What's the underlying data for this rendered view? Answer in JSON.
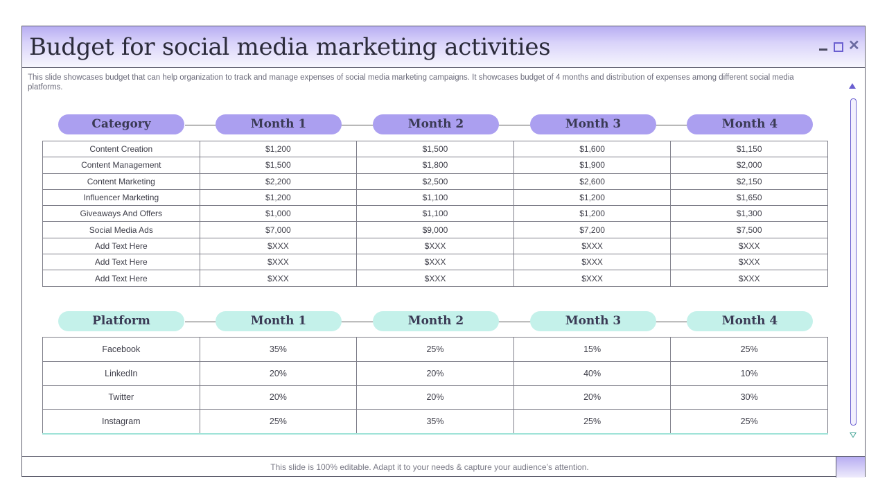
{
  "title": "Budget for social media marketing activities",
  "description": "This slide showcases budget that can help organization to track and manage expenses of social media marketing campaigns. It showcases budget of 4 months and distribution of expenses among different social media platforms.",
  "window_controls": {
    "close_glyph": "✕"
  },
  "budget_table": {
    "headers": [
      "Category",
      "Month 1",
      "Month 2",
      "Month 3",
      "Month 4"
    ],
    "rows": [
      [
        "Content Creation",
        "$1,200",
        "$1,500",
        "$1,600",
        "$1,150"
      ],
      [
        "Content Management",
        "$1,500",
        "$1,800",
        "$1,900",
        "$2,000"
      ],
      [
        "Content Marketing",
        "$2,200",
        "$2,500",
        "$2,600",
        "$2,150"
      ],
      [
        "Influencer Marketing",
        "$1,200",
        "$1,100",
        "$1,200",
        "$1,650"
      ],
      [
        "Giveaways And Offers",
        "$1,000",
        "$1,100",
        "$1,200",
        "$1,300"
      ],
      [
        "Social Media Ads",
        "$7,000",
        "$9,000",
        "$7,200",
        "$7,500"
      ],
      [
        "Add Text Here",
        "$XXX",
        "$XXX",
        "$XXX",
        "$XXX"
      ],
      [
        "Add Text Here",
        "$XXX",
        "$XXX",
        "$XXX",
        "$XXX"
      ],
      [
        "Add Text Here",
        "$XXX",
        "$XXX",
        "$XXX",
        "$XXX"
      ]
    ]
  },
  "platform_table": {
    "headers": [
      "Platform",
      "Month 1",
      "Month 2",
      "Month 3",
      "Month 4"
    ],
    "rows": [
      [
        "Facebook",
        "35%",
        "25%",
        "15%",
        "25%"
      ],
      [
        "LinkedIn",
        "20%",
        "20%",
        "40%",
        "10%"
      ],
      [
        "Twitter",
        "20%",
        "20%",
        "20%",
        "30%"
      ],
      [
        "Instagram",
        "25%",
        "35%",
        "25%",
        "25%"
      ]
    ]
  },
  "footer_text": "This slide is 100% editable. Adapt it to your needs & capture your audience’s attention.",
  "colors": {
    "accent_purple": "#ab9ff0",
    "accent_mint": "#c4f1ea",
    "border": "#5b5b6b"
  }
}
